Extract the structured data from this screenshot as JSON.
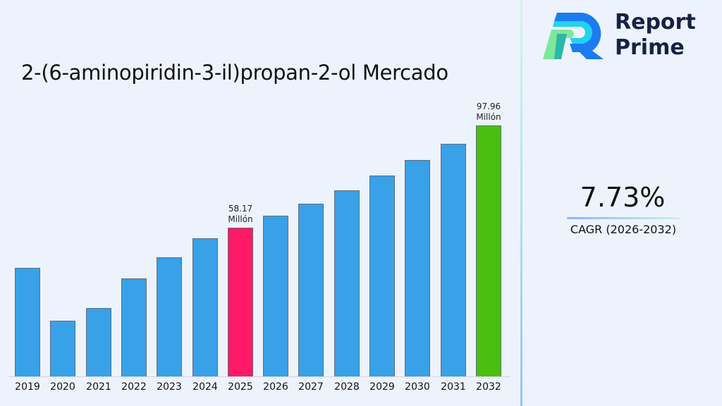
{
  "brand": {
    "name_line1": "Report",
    "name_line2": "Prime"
  },
  "title": "2-(6-aminopiridin-3-il)propan-2-ol Mercado",
  "cagr": {
    "value": "7.73%",
    "label": "CAGR (2026-2032)"
  },
  "colors": {
    "default_bar": "#38a1e8",
    "highlight_base_year": "#ff1a66",
    "highlight_end_year": "#4bbf0e",
    "background": "#edf3fd"
  },
  "annotations": {
    "2025": {
      "value": "58.17",
      "unit": "Millón"
    },
    "2032": {
      "value": "97.96",
      "unit": "Millón"
    }
  },
  "chart_data": {
    "type": "bar",
    "title": "2-(6-aminopiridin-3-il)propan-2-ol Mercado",
    "xlabel": "",
    "ylabel": "",
    "unit": "Millón",
    "categories": [
      "2019",
      "2020",
      "2021",
      "2022",
      "2023",
      "2024",
      "2025",
      "2026",
      "2027",
      "2028",
      "2029",
      "2030",
      "2031",
      "2032"
    ],
    "values": [
      42.4,
      21.7,
      26.7,
      38.3,
      46.5,
      54.0,
      58.17,
      62.67,
      67.51,
      72.73,
      78.35,
      84.41,
      90.94,
      97.96
    ],
    "labeled_points": {
      "2025": 58.17,
      "2032": 97.96
    },
    "highlight": {
      "2025": "#ff1a66",
      "2032": "#4bbf0e"
    },
    "ylim": [
      0,
      100
    ],
    "grid": false,
    "legend": null,
    "cagr": "7.73%",
    "cagr_period": "2026-2032"
  }
}
